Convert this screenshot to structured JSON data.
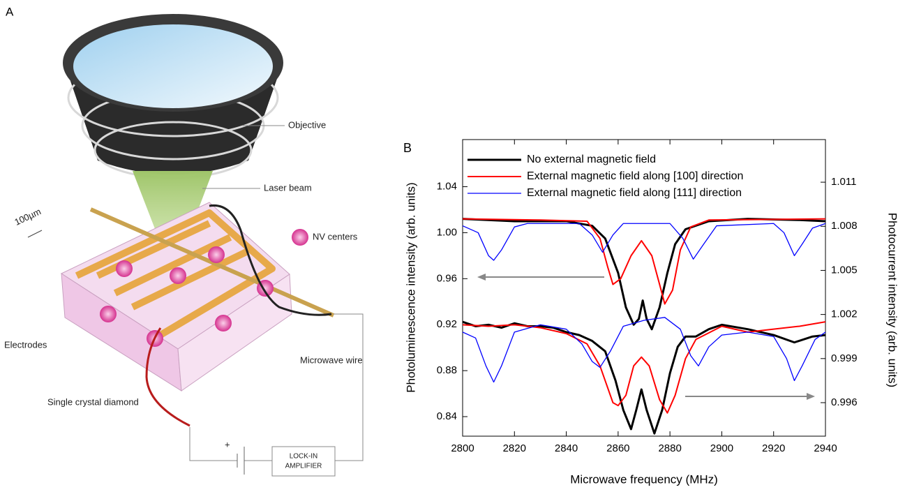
{
  "panel_a": {
    "panel_label": "A",
    "objective": "Objective",
    "laser": "Laser beam",
    "nv": "NV centers",
    "scale": "100µm",
    "electrodes": "Electrodes",
    "wire": "Microwave wire",
    "diamond": "Single crystal diamond",
    "lockin": [
      "LOCK-IN",
      "AMPLIFIER"
    ],
    "plus": "+"
  },
  "chart_data": {
    "type": "line",
    "panel_label": "B",
    "x_label": "Microwave frequency (MHz)",
    "y_label": "Photoluminescence intensity (arb. units)",
    "y2_label": "Photocurrent intensity (arb. units)",
    "xlim": [
      2800,
      2940
    ],
    "xticks": [
      2800,
      2820,
      2840,
      2860,
      2880,
      2900,
      2920,
      2940
    ],
    "ylim": [
      0.823,
      1.081
    ],
    "yticks": [
      0.84,
      0.88,
      0.92,
      0.96,
      {
        "value": 1,
        "label": "1.00"
      },
      1.04
    ],
    "y2lim": [
      0.99372,
      1.0139
    ],
    "y2ticks": [
      0.996,
      0.999,
      1.002,
      1.005,
      1.008,
      1.011
    ],
    "series": [
      {
        "name": "No external magnetic field",
        "color": "#000000",
        "line_width": 3,
        "x": [
          2800,
          2820,
          2840,
          2850,
          2855,
          2860,
          2863,
          2866,
          2868,
          2869.5,
          2871,
          2873,
          2876,
          2879,
          2882,
          2886,
          2895,
          2910,
          2930,
          2940
        ],
        "values": [
          1.012,
          1.01,
          1.01,
          1.006,
          0.995,
          0.965,
          0.935,
          0.92,
          0.925,
          0.941,
          0.925,
          0.916,
          0.935,
          0.965,
          0.99,
          1.003,
          1.01,
          1.012,
          1.011,
          1.01
        ]
      },
      {
        "name": "External magnetic field along [100] direction",
        "color": "#ff0000",
        "line_width": 2,
        "x": [
          2800,
          2830,
          2848,
          2853,
          2856,
          2858,
          2861,
          2865,
          2869,
          2873,
          2876,
          2878,
          2881,
          2884,
          2888,
          2895,
          2940
        ],
        "values": [
          1.012,
          1.011,
          1.01,
          0.995,
          0.97,
          0.955,
          0.96,
          0.98,
          0.993,
          0.98,
          0.955,
          0.938,
          0.95,
          0.985,
          1.005,
          1.011,
          1.012
        ]
      },
      {
        "name": "External magnetic field along [111] direction",
        "color": "#0000ff",
        "line_width": 1.3,
        "x": [
          2800,
          2806,
          2810,
          2812,
          2815,
          2820,
          2825,
          2845,
          2850,
          2854,
          2858,
          2862,
          2880,
          2885,
          2889,
          2893,
          2898,
          2920,
          2924,
          2928,
          2931,
          2935,
          2940
        ],
        "values": [
          1.006,
          1.0,
          0.98,
          0.976,
          0.985,
          1.005,
          1.008,
          1.008,
          0.998,
          0.983,
          0.998,
          1.008,
          1.008,
          0.995,
          0.977,
          0.99,
          1.006,
          1.008,
          1.0,
          0.98,
          0.99,
          1.004,
          1.008
        ]
      },
      {
        "color": "#000000",
        "line_width": 3,
        "axis": "y2",
        "x": [
          2800,
          2805,
          2810,
          2815,
          2820,
          2825,
          2830,
          2835,
          2840,
          2845,
          2850,
          2855,
          2859,
          2862,
          2865,
          2867,
          2869,
          2871,
          2874,
          2877,
          2880,
          2883,
          2886,
          2890,
          2895,
          2900,
          2910,
          2920,
          2928,
          2935,
          2940
        ],
        "values": [
          1.0015,
          1.0012,
          1.0013,
          1.0011,
          1.0014,
          1.0012,
          1.0012,
          1.0011,
          1.0008,
          1.0006,
          1.0002,
          0.9995,
          0.9975,
          0.9955,
          0.9942,
          0.9955,
          0.9969,
          0.9955,
          0.9939,
          0.9955,
          0.998,
          0.9998,
          1.0005,
          1.0005,
          1.001,
          1.0013,
          1.001,
          1.0006,
          1.0001,
          1.0005,
          1.0006
        ]
      },
      {
        "color": "#ff0000",
        "line_width": 2,
        "axis": "y2",
        "x": [
          2800,
          2810,
          2820,
          2830,
          2840,
          2848,
          2853,
          2858,
          2860,
          2863,
          2866,
          2869,
          2872,
          2876,
          2879,
          2882,
          2886,
          2890,
          2900,
          2910,
          2920,
          2930,
          2940
        ],
        "values": [
          1.0013,
          1.0012,
          1.0013,
          1.0011,
          1.0007,
          1.0,
          0.9985,
          0.996,
          0.9958,
          0.9965,
          0.9985,
          0.9991,
          0.9985,
          0.9962,
          0.9953,
          0.9965,
          0.999,
          1.0003,
          1.0012,
          1.0008,
          1.001,
          1.0012,
          1.0015
        ]
      },
      {
        "color": "#0000ff",
        "line_width": 1.3,
        "axis": "y2",
        "x": [
          2800,
          2805,
          2809,
          2812,
          2815,
          2820,
          2830,
          2840,
          2846,
          2850,
          2853,
          2857,
          2862,
          2870,
          2878,
          2884,
          2888,
          2891,
          2895,
          2900,
          2910,
          2920,
          2925,
          2928,
          2931,
          2936,
          2940
        ],
        "values": [
          1.0008,
          1.0004,
          0.9985,
          0.9974,
          0.9985,
          1.0008,
          1.0013,
          1.001,
          1.0,
          0.9988,
          0.9984,
          0.9995,
          1.0012,
          1.0016,
          1.0018,
          1.001,
          0.9992,
          0.9985,
          0.9998,
          1.0006,
          1.0008,
          1.0005,
          0.999,
          0.9975,
          0.9985,
          1.0003,
          1.0008
        ]
      }
    ]
  }
}
